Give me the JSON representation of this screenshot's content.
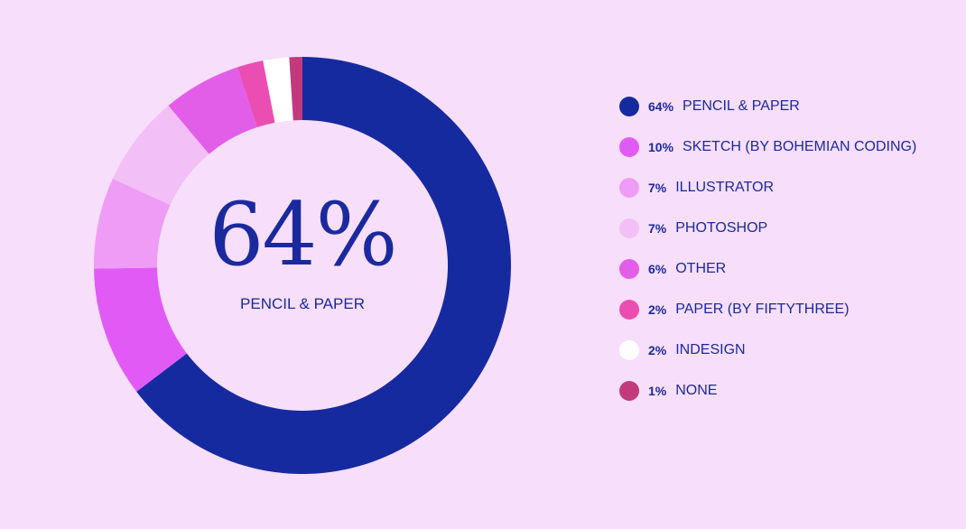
{
  "chart_data": {
    "type": "pie",
    "variant": "donut",
    "center": {
      "value": "64%",
      "label": "PENCIL & PAPER"
    },
    "slices": [
      {
        "label": "PENCIL & PAPER",
        "pct_label": "64%",
        "value": 64,
        "color": "#162aa0"
      },
      {
        "label": "SKETCH (BY BOHEMIAN CODING)",
        "pct_label": "10%",
        "value": 10,
        "color": "#e25af6"
      },
      {
        "label": "ILLUSTRATOR",
        "pct_label": "7%",
        "value": 7,
        "color": "#ee9cf5"
      },
      {
        "label": "PHOTOSHOP",
        "pct_label": "7%",
        "value": 7,
        "color": "#f2bff6"
      },
      {
        "label": "OTHER",
        "pct_label": "6%",
        "value": 6,
        "color": "#e35ee8"
      },
      {
        "label": "PAPER (BY FIFTYTHREE)",
        "pct_label": "2%",
        "value": 2,
        "color": "#ea4eb2"
      },
      {
        "label": "INDESIGN",
        "pct_label": "2%",
        "value": 2,
        "color": "#ffffff"
      },
      {
        "label": "NONE",
        "pct_label": "1%",
        "value": 1,
        "color": "#c23a7c"
      }
    ],
    "legend_position": "right"
  },
  "colors": {
    "background": "#f7defa",
    "text": "#1a2a9e"
  }
}
